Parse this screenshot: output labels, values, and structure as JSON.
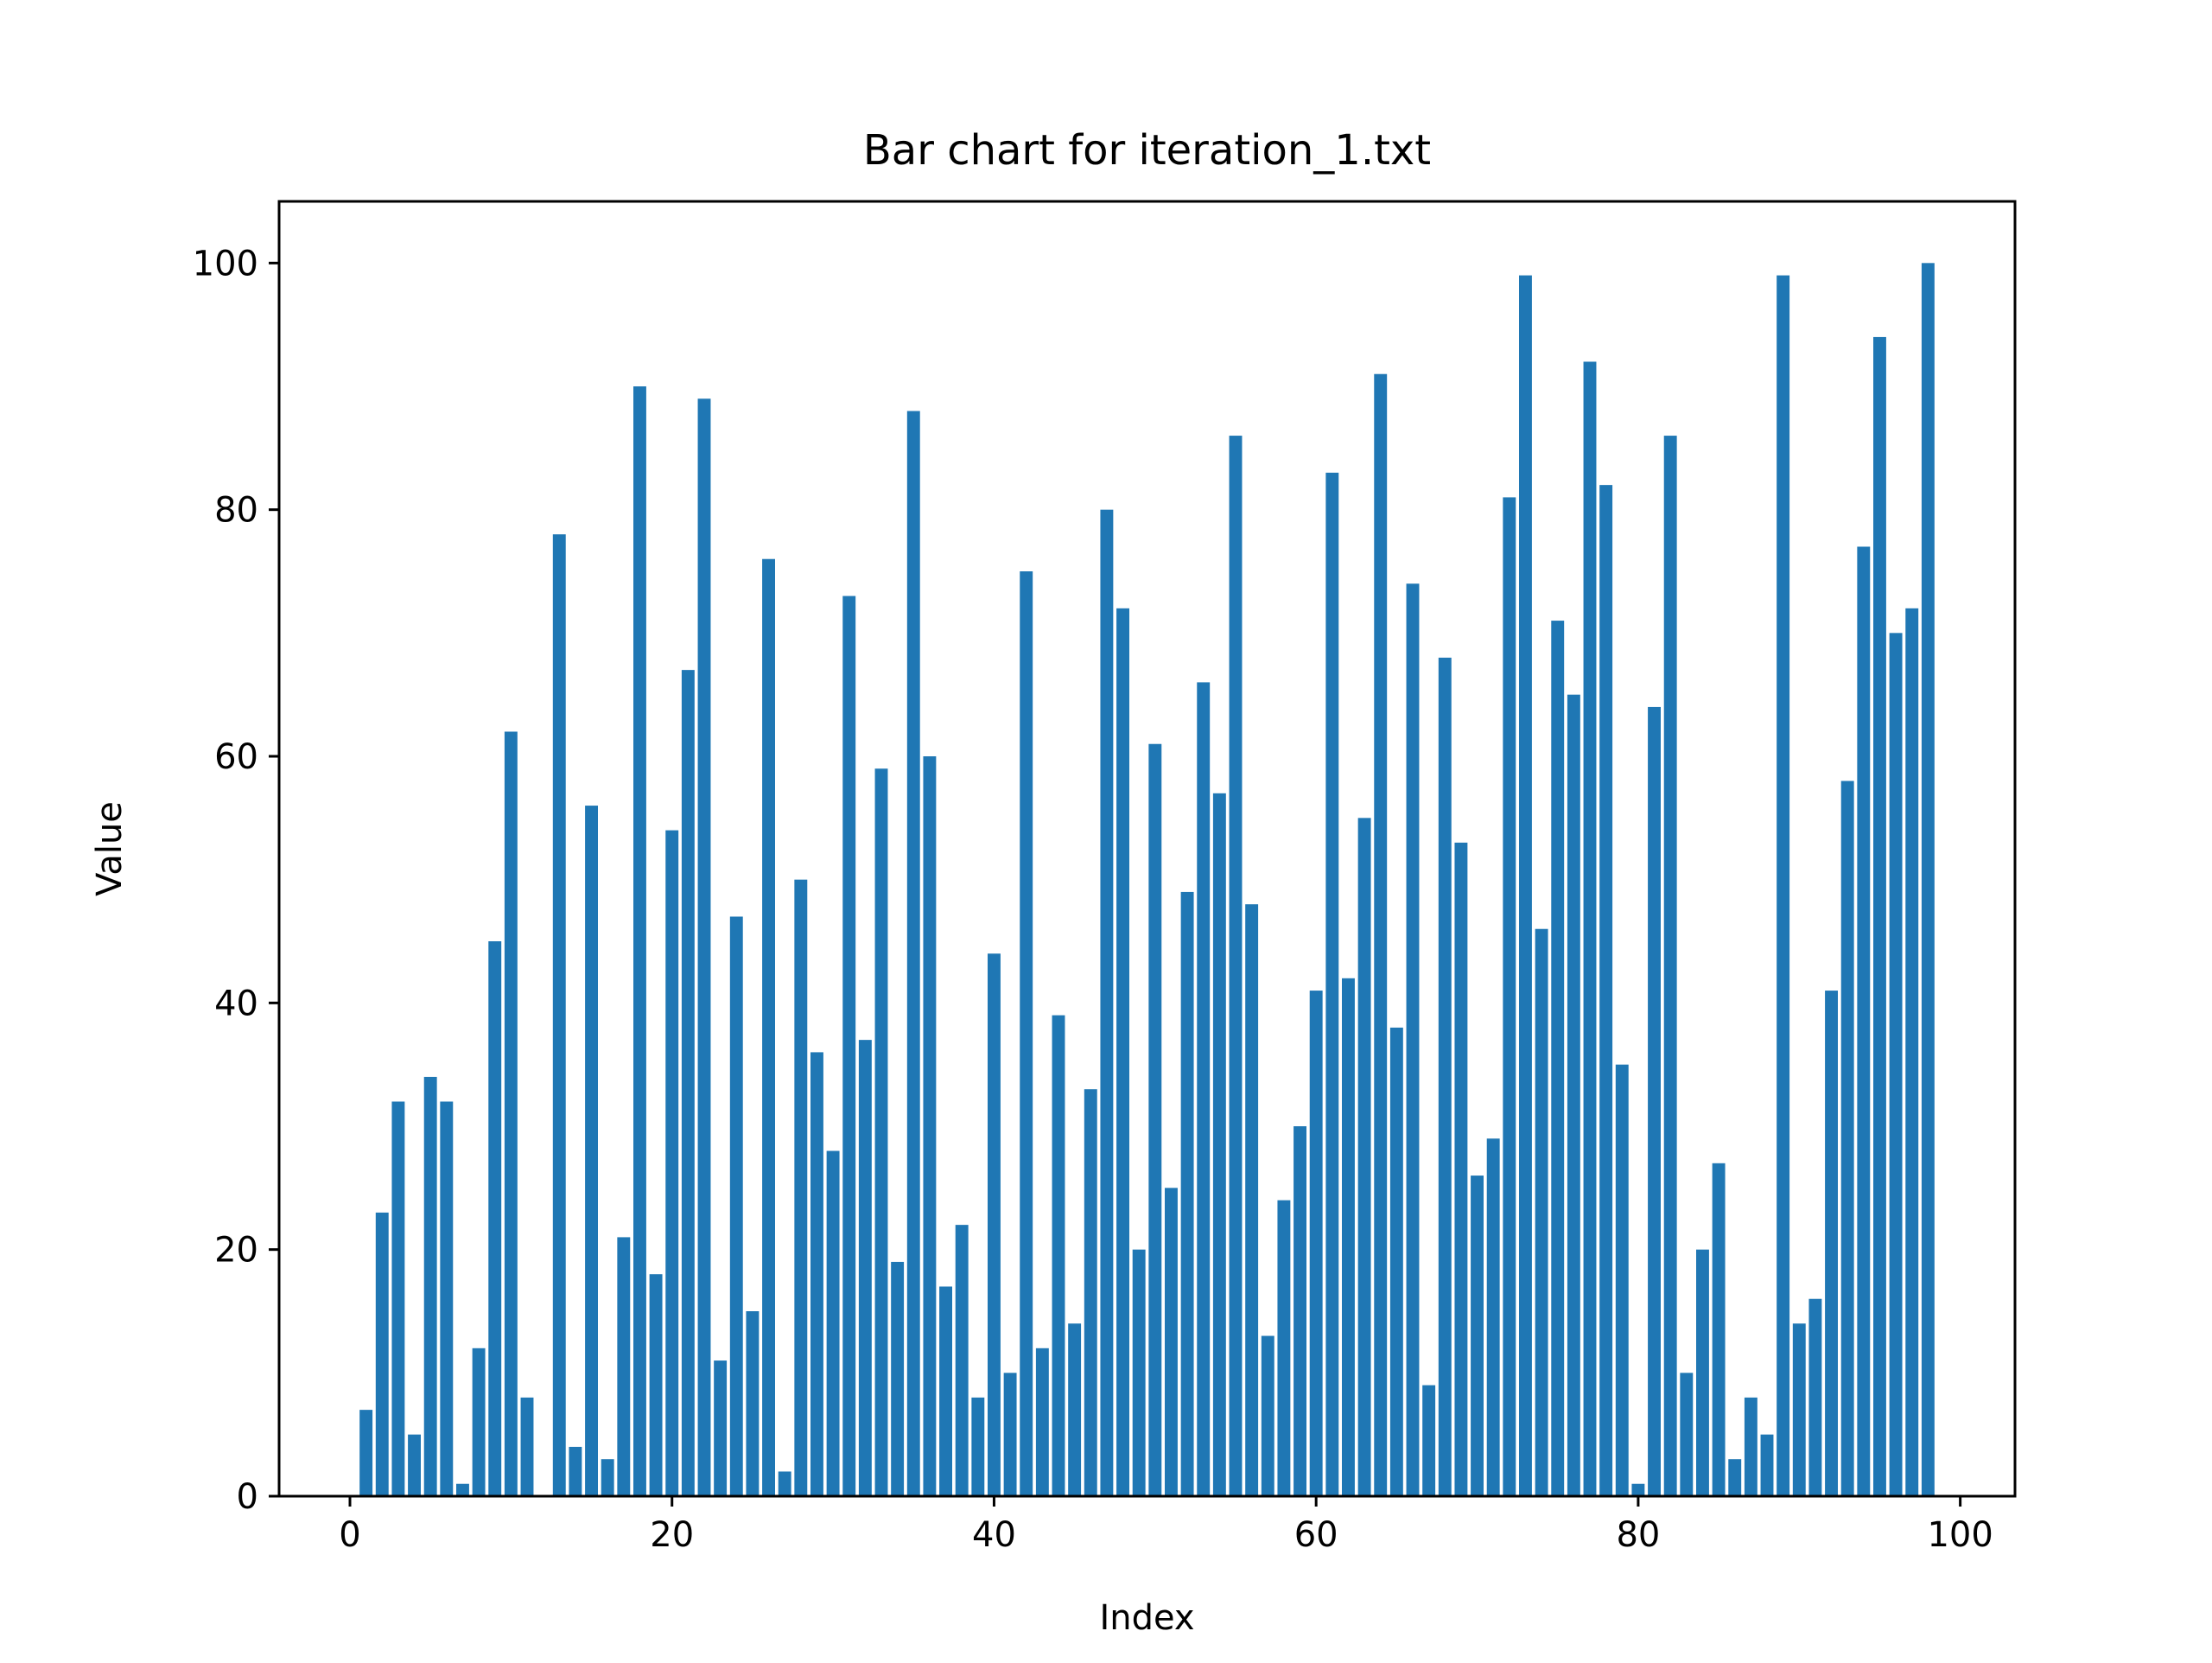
{
  "chart_data": {
    "type": "bar",
    "title": "Bar chart for iteration_1.txt",
    "xlabel": "Index",
    "ylabel": "Value",
    "x": [
      0,
      1,
      2,
      3,
      4,
      5,
      6,
      7,
      8,
      9,
      10,
      11,
      12,
      13,
      14,
      15,
      16,
      17,
      18,
      19,
      20,
      21,
      22,
      23,
      24,
      25,
      26,
      27,
      28,
      29,
      30,
      31,
      32,
      33,
      34,
      35,
      36,
      37,
      38,
      39,
      40,
      41,
      42,
      43,
      44,
      45,
      46,
      47,
      48,
      49,
      50,
      51,
      52,
      53,
      54,
      55,
      56,
      57,
      58,
      59,
      60,
      61,
      62,
      63,
      64,
      65,
      66,
      67,
      68,
      69,
      70,
      71,
      72,
      73,
      74,
      75,
      76,
      77,
      78,
      79,
      80,
      81,
      82,
      83,
      84,
      85,
      86,
      87,
      88,
      89,
      90,
      91,
      92,
      93,
      94,
      95,
      96,
      97,
      98
    ],
    "values": [
      0,
      7,
      23,
      32,
      5,
      34,
      32,
      1,
      12,
      45,
      62,
      8,
      0,
      78,
      4,
      56,
      3,
      21,
      90,
      18,
      54,
      67,
      89,
      11,
      47,
      15,
      76,
      2,
      50,
      36,
      28,
      73,
      37,
      59,
      19,
      88,
      60,
      17,
      22,
      8,
      44,
      10,
      75,
      12,
      39,
      14,
      33,
      80,
      72,
      20,
      61,
      25,
      49,
      66,
      57,
      86,
      48,
      13,
      24,
      30,
      41,
      83,
      42,
      55,
      91,
      38,
      74,
      9,
      68,
      53,
      26,
      29,
      81,
      99,
      46,
      71,
      65,
      92,
      82,
      35,
      1,
      64,
      86,
      10,
      20,
      27,
      3,
      8,
      5,
      99,
      14,
      16,
      41,
      58,
      77,
      94,
      70,
      72,
      100
    ],
    "xticks": [
      0,
      20,
      40,
      60,
      80,
      100
    ],
    "xtick_labels": [
      "0",
      "20",
      "40",
      "60",
      "80",
      "100"
    ],
    "yticks": [
      0,
      20,
      40,
      60,
      80,
      100
    ],
    "ytick_labels": [
      "0",
      "20",
      "40",
      "60",
      "80",
      "100"
    ],
    "xlim": [
      -4.4,
      103.4
    ],
    "ylim": [
      0,
      105
    ],
    "bar_color": "#1f77b4",
    "grid": false,
    "legend": "none"
  }
}
